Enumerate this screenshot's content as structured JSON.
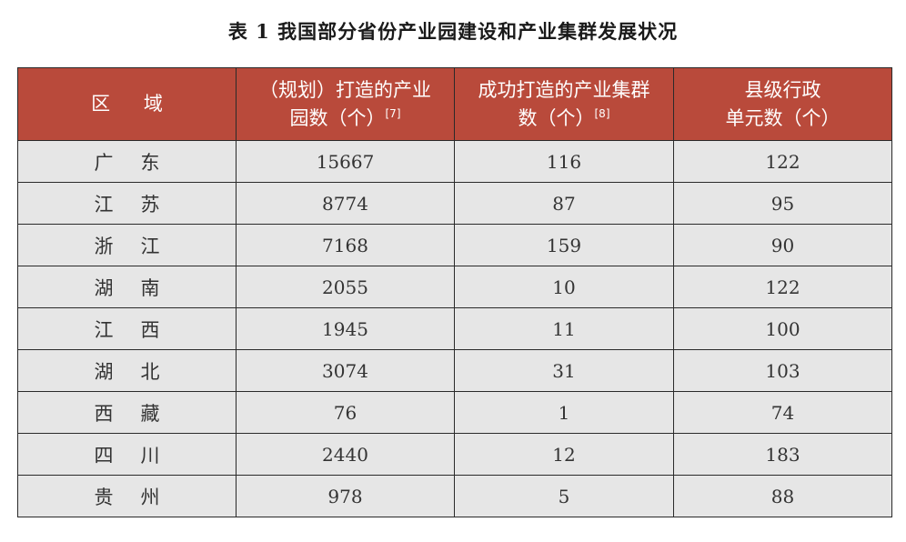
{
  "title": "表 1  我国部分省份产业园建设和产业集群发展状况",
  "header": {
    "col1": "区 域",
    "col2_line1": "（规划）打造的产业",
    "col2_line2": "园数（个）",
    "col2_ref": "[7]",
    "col3_line1": "成功打造的产业集群",
    "col3_line2": "数（个）",
    "col3_ref": "[8]",
    "col4_line1": "县级行政",
    "col4_line2": "单元数（个）"
  },
  "rows": [
    {
      "region": "广东",
      "parks": "15667",
      "clusters": "116",
      "counties": "122"
    },
    {
      "region": "江苏",
      "parks": "8774",
      "clusters": "87",
      "counties": "95"
    },
    {
      "region": "浙江",
      "parks": "7168",
      "clusters": "159",
      "counties": "90"
    },
    {
      "region": "湖南",
      "parks": "2055",
      "clusters": "10",
      "counties": "122"
    },
    {
      "region": "江西",
      "parks": "1945",
      "clusters": "11",
      "counties": "100"
    },
    {
      "region": "湖北",
      "parks": "3074",
      "clusters": "31",
      "counties": "103"
    },
    {
      "region": "西藏",
      "parks": "76",
      "clusters": "1",
      "counties": "74"
    },
    {
      "region": "四川",
      "parks": "2440",
      "clusters": "12",
      "counties": "183"
    },
    {
      "region": "贵州",
      "parks": "978",
      "clusters": "5",
      "counties": "88"
    }
  ],
  "colors": {
    "header_bg": "#b94a3b",
    "row_bg": "#e6e6e6"
  }
}
